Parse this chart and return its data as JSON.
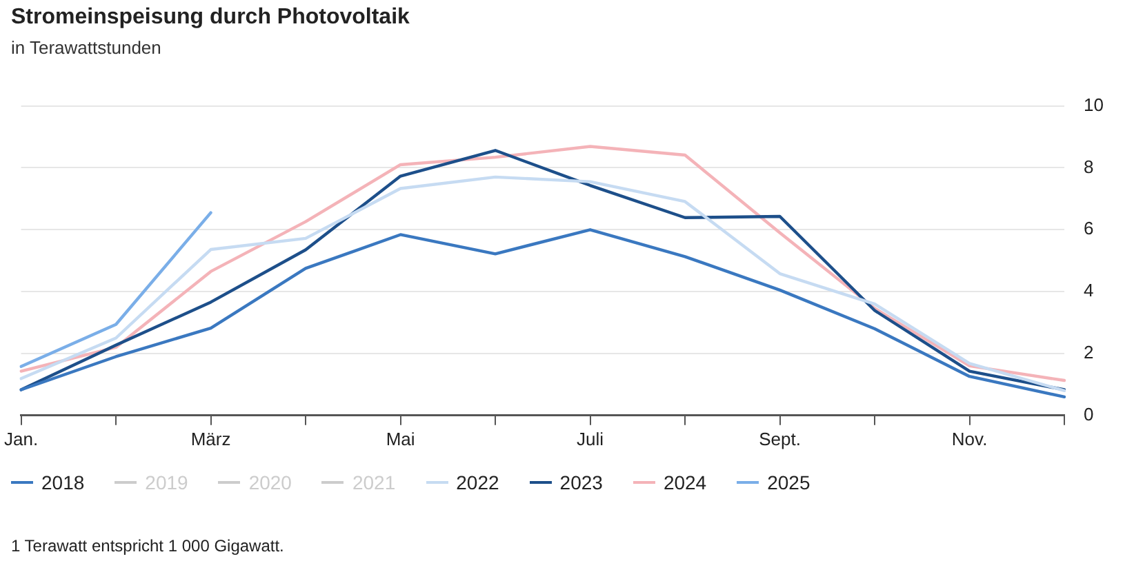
{
  "chart_data": {
    "type": "line",
    "title": "Stromeinspeisung durch Photovoltaik",
    "subtitle": "in Terawattstunden",
    "categories": [
      "Jan.",
      null,
      "März",
      null,
      "Mai",
      null,
      "Juli",
      null,
      "Sept.",
      null,
      "Nov.",
      null
    ],
    "series": [
      {
        "name": "2018",
        "color": "#3a78c0",
        "values": [
          0.83,
          1.9,
          2.82,
          4.75,
          5.84,
          5.22,
          6.0,
          5.13,
          4.05,
          2.8,
          1.26,
          0.6
        ]
      },
      {
        "name": "2019",
        "color": "#cccccc",
        "values": [
          null,
          null,
          null,
          null,
          null,
          null,
          null,
          null,
          null,
          null,
          null,
          null
        ]
      },
      {
        "name": "2020",
        "color": "#cccccc",
        "values": [
          null,
          null,
          null,
          null,
          null,
          null,
          null,
          null,
          null,
          null,
          null,
          null
        ]
      },
      {
        "name": "2021",
        "color": "#cccccc",
        "values": [
          null,
          null,
          null,
          null,
          null,
          null,
          null,
          null,
          null,
          null,
          null,
          null
        ]
      },
      {
        "name": "2022",
        "color": "#c6dbf2",
        "values": [
          1.19,
          2.5,
          5.36,
          5.72,
          7.33,
          7.7,
          7.55,
          6.91,
          4.58,
          3.6,
          1.68,
          0.8
        ]
      },
      {
        "name": "2023",
        "color": "#1d4f8a",
        "values": [
          0.83,
          2.27,
          3.66,
          5.35,
          7.73,
          8.56,
          7.43,
          6.39,
          6.43,
          3.39,
          1.43,
          0.83
        ]
      },
      {
        "name": "2024",
        "color": "#f4b3b8",
        "values": [
          1.43,
          2.2,
          4.65,
          6.26,
          8.1,
          8.34,
          8.69,
          8.41,
          5.9,
          3.46,
          1.6,
          1.13
        ]
      },
      {
        "name": "2025",
        "color": "#7aaee8",
        "values": [
          1.58,
          2.94,
          6.55,
          null,
          null,
          null,
          null,
          null,
          null,
          null,
          null,
          null
        ]
      }
    ],
    "ylim": [
      0,
      10
    ],
    "yticks": [
      0,
      2,
      4,
      6,
      8,
      10
    ],
    "grid": "y",
    "legend": "bottom",
    "marker": "none",
    "line_style": "solid",
    "annotations": [
      "1 Terawatt entspricht 1 000 Gigawatt."
    ]
  }
}
